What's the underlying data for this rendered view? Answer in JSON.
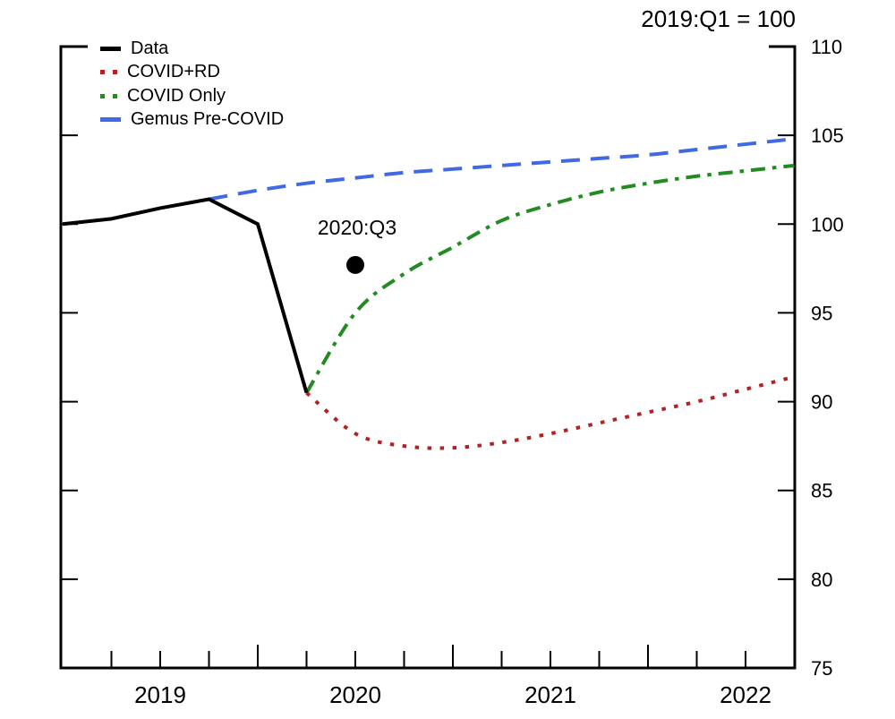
{
  "title": "2019:Q1 = 100",
  "chart_data": {
    "type": "line",
    "title": "2019:Q1 = 100",
    "x_axis": {
      "tick_years": [
        "2019",
        "2020",
        "2021",
        "2022"
      ],
      "minor_tick_unit": "quarter",
      "range": [
        "2019:Q1",
        "2022:Q4"
      ]
    },
    "y_axis": {
      "side": "right",
      "ticks": [
        75,
        80,
        85,
        90,
        95,
        100,
        105,
        110
      ],
      "range": [
        75,
        110
      ]
    },
    "legend_position": "top-left-inside",
    "frame": "open-top-with-corner-stubs",
    "series": [
      {
        "name": "Data",
        "color": "#000000",
        "style": "solid",
        "start_quarter": 0,
        "quarters": [
          "2019:Q1",
          "2019:Q2",
          "2019:Q3",
          "2019:Q4",
          "2020:Q1",
          "2020:Q2"
        ],
        "values": [
          100.0,
          100.3,
          100.9,
          101.4,
          100.0,
          90.5
        ]
      },
      {
        "name": "COVID+RD",
        "color": "#B22222",
        "style": "dotted",
        "start_quarter": 5,
        "quarters": [
          "2020:Q2",
          "2020:Q3",
          "2020:Q4",
          "2021:Q1",
          "2021:Q2",
          "2021:Q3",
          "2021:Q4",
          "2022:Q1",
          "2022:Q2",
          "2022:Q3",
          "2022:Q4"
        ],
        "values": [
          90.5,
          88.2,
          87.5,
          87.4,
          87.7,
          88.2,
          88.8,
          89.4,
          90.0,
          90.7,
          91.4
        ]
      },
      {
        "name": "COVID Only",
        "color": "#228B22",
        "style": "dashdot",
        "start_quarter": 5,
        "quarters": [
          "2020:Q2",
          "2020:Q3",
          "2020:Q4",
          "2021:Q1",
          "2021:Q2",
          "2021:Q3",
          "2021:Q4",
          "2022:Q1",
          "2022:Q2",
          "2022:Q3",
          "2022:Q4"
        ],
        "values": [
          90.5,
          95.0,
          97.2,
          98.7,
          100.2,
          101.1,
          101.8,
          102.3,
          102.7,
          103.0,
          103.3
        ]
      },
      {
        "name": "Gemus Pre-COVID",
        "color": "#4169E1",
        "style": "dashed",
        "start_quarter": 3,
        "quarters": [
          "2019:Q4",
          "2020:Q1",
          "2020:Q2",
          "2020:Q3",
          "2020:Q4",
          "2021:Q1",
          "2021:Q2",
          "2021:Q3",
          "2021:Q4",
          "2022:Q1",
          "2022:Q2",
          "2022:Q3",
          "2022:Q4"
        ],
        "values": [
          101.4,
          101.9,
          102.3,
          102.6,
          102.9,
          103.1,
          103.3,
          103.5,
          103.7,
          103.9,
          104.2,
          104.5,
          104.8
        ]
      }
    ],
    "marker": {
      "label": "2020:Q3",
      "quarter": "2020:Q3",
      "quarter_index": 6,
      "value": 97.7
    }
  }
}
